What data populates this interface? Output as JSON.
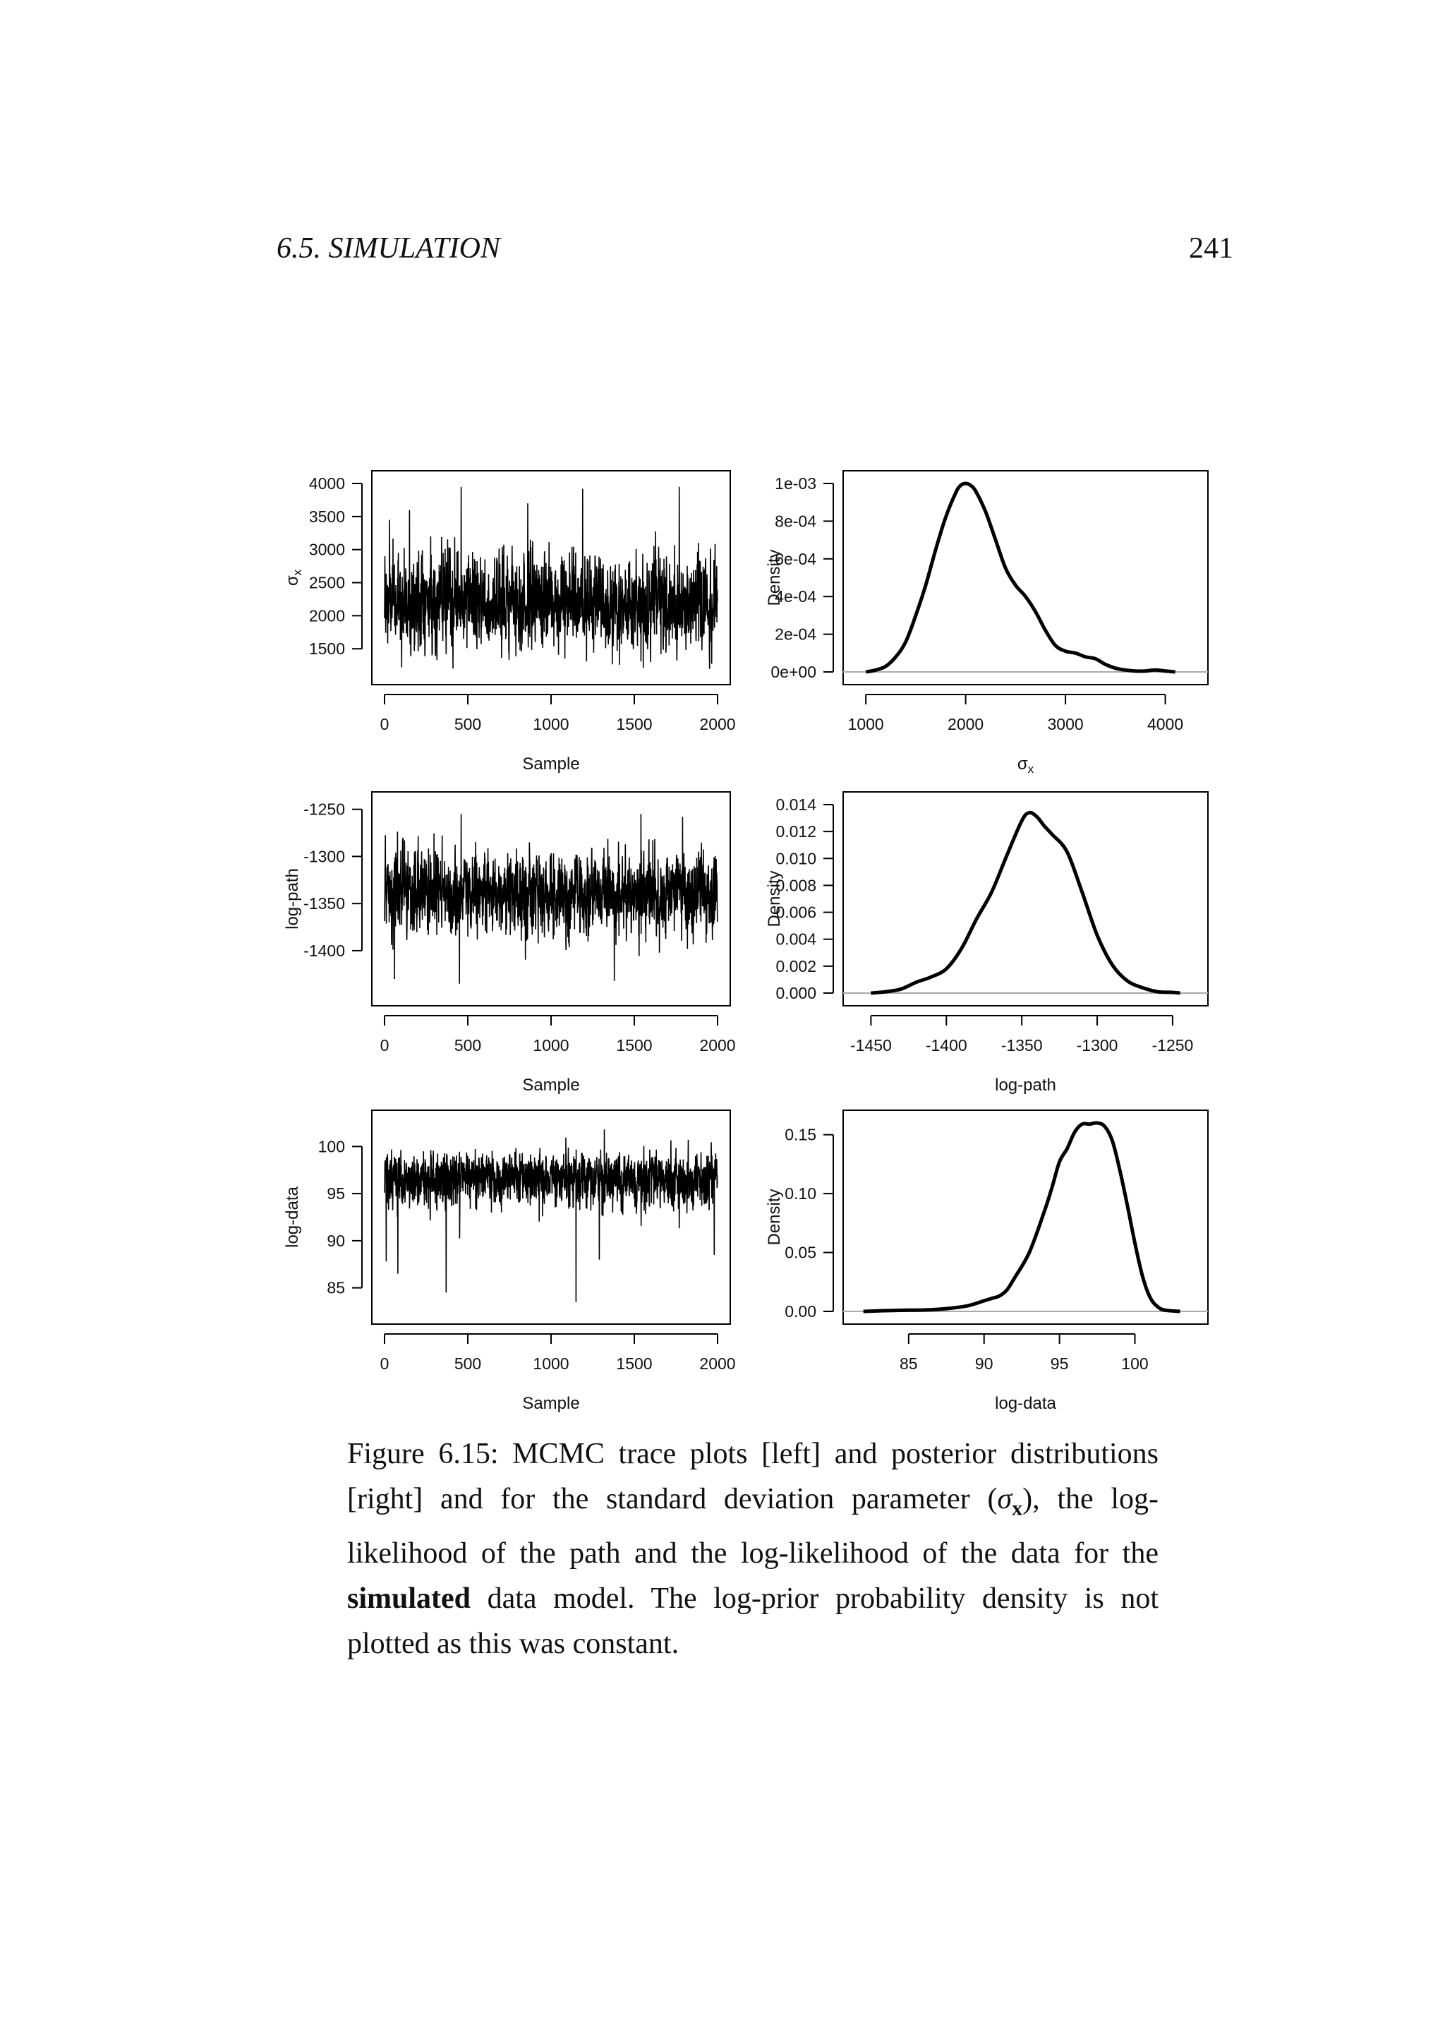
{
  "header": {
    "running_head": "6.5.  SIMULATION",
    "page_number": "241"
  },
  "caption": {
    "prefix": "Figure 6.15: MCMC trace plots [left] and posterior distributions [right] and for the standard deviation parameter (",
    "symbol": "σ",
    "subscript": "x",
    "middle": "), the log-likelihood of the path and the log-likelihood of the data for the ",
    "bold": "simulated",
    "suffix": " data model. The log-prior probability density is not plotted as this was constant."
  },
  "colors": {
    "line": "#000000",
    "baseline": "#aaaaaa"
  },
  "chart_data": [
    {
      "type": "line",
      "panel": "trace-sigma",
      "xlabel": "Sample",
      "ylabel": "σx",
      "xlim": [
        0,
        2000
      ],
      "ylim": [
        1150,
        4000
      ],
      "xticks": [
        0,
        500,
        1000,
        1500,
        2000
      ],
      "xtick_labels": [
        "0",
        "500",
        "1000",
        "1500",
        "2000"
      ],
      "yticks": [
        1500,
        2000,
        2500,
        3000,
        3500,
        4000
      ],
      "ytick_labels": [
        "1500",
        "2000",
        "2500",
        "3000",
        "3500",
        "4000"
      ],
      "series": [
        {
          "n": 2000,
          "mean": 2150,
          "sd": 380,
          "min": 1150,
          "max": 3950,
          "skew": "right",
          "spikes": [
            [
              460,
              3950
            ],
            [
              1190,
              3920
            ],
            [
              1770,
              3950
            ],
            [
              30,
              3450
            ],
            [
              150,
              3600
            ],
            [
              860,
              3700
            ]
          ]
        }
      ]
    },
    {
      "type": "line",
      "panel": "density-sigma",
      "xlabel": "σx",
      "ylabel": "Density",
      "xlim": [
        900,
        4300
      ],
      "ylim": [
        0,
        0.001
      ],
      "xticks": [
        1000,
        2000,
        3000,
        4000
      ],
      "xtick_labels": [
        "1000",
        "2000",
        "3000",
        "4000"
      ],
      "yticks": [
        0,
        0.0002,
        0.0004,
        0.0006,
        0.0008,
        0.001
      ],
      "ytick_labels": [
        "0e+00",
        "2e-04",
        "4e-04",
        "6e-04",
        "8e-04",
        "1e-03"
      ],
      "x": [
        1000,
        1100,
        1200,
        1300,
        1400,
        1500,
        1600,
        1700,
        1800,
        1900,
        1950,
        2000,
        2050,
        2100,
        2200,
        2300,
        2400,
        2500,
        2600,
        2700,
        2800,
        2900,
        3000,
        3100,
        3200,
        3300,
        3400,
        3500,
        3600,
        3700,
        3800,
        3900,
        4000,
        4100
      ],
      "y": [
        0,
        1e-05,
        3e-05,
        8e-05,
        0.00016,
        0.0003,
        0.00046,
        0.00065,
        0.00082,
        0.00095,
        0.00099,
        0.001,
        0.00099,
        0.00096,
        0.00085,
        0.0007,
        0.00055,
        0.00046,
        0.0004,
        0.00032,
        0.00022,
        0.00014,
        0.00011,
        0.0001,
        8e-05,
        7e-05,
        4e-05,
        2e-05,
        1e-05,
        5e-06,
        5e-06,
        1e-05,
        5e-06,
        0
      ]
    },
    {
      "type": "line",
      "panel": "trace-logpath",
      "xlabel": "Sample",
      "ylabel": "log-path",
      "xlim": [
        0,
        2000
      ],
      "ylim": [
        -1445,
        -1245
      ],
      "xticks": [
        0,
        500,
        1000,
        1500,
        2000
      ],
      "xtick_labels": [
        "0",
        "500",
        "1000",
        "1500",
        "2000"
      ],
      "yticks": [
        -1400,
        -1350,
        -1300,
        -1250
      ],
      "ytick_labels": [
        "-1400",
        "-1350",
        "-1300",
        "-1250"
      ],
      "series": [
        {
          "n": 2000,
          "mean": -1340,
          "sd": 28,
          "min": -1435,
          "max": -1255,
          "skew": "none",
          "spikes": [
            [
              460,
              -1255
            ],
            [
              1540,
              -1255
            ],
            [
              1790,
              -1258
            ],
            [
              60,
              -1430
            ],
            [
              450,
              -1435
            ],
            [
              1380,
              -1432
            ]
          ]
        }
      ]
    },
    {
      "type": "line",
      "panel": "density-logpath",
      "xlabel": "log-path",
      "ylabel": "Density",
      "xlim": [
        -1460,
        -1235
      ],
      "ylim": [
        0,
        0.014
      ],
      "xticks": [
        -1450,
        -1400,
        -1350,
        -1300,
        -1250
      ],
      "xtick_labels": [
        "-1450",
        "-1400",
        "-1350",
        "-1300",
        "-1250"
      ],
      "yticks": [
        0,
        0.002,
        0.004,
        0.006,
        0.008,
        0.01,
        0.012,
        0.014
      ],
      "ytick_labels": [
        "0.000",
        "0.002",
        "0.004",
        "0.006",
        "0.008",
        "0.010",
        "0.012",
        "0.014"
      ],
      "x": [
        -1450,
        -1440,
        -1430,
        -1420,
        -1410,
        -1400,
        -1390,
        -1380,
        -1370,
        -1360,
        -1350,
        -1345,
        -1340,
        -1335,
        -1330,
        -1320,
        -1310,
        -1300,
        -1290,
        -1280,
        -1270,
        -1260,
        -1250,
        -1245
      ],
      "y": [
        0,
        0.0001,
        0.0003,
        0.0008,
        0.0012,
        0.0018,
        0.0033,
        0.0055,
        0.0075,
        0.0102,
        0.0128,
        0.0134,
        0.0131,
        0.0124,
        0.0118,
        0.0105,
        0.0075,
        0.0043,
        0.0021,
        0.0009,
        0.0004,
        0.0001,
        5e-05,
        0
      ]
    },
    {
      "type": "line",
      "panel": "trace-logdata",
      "xlabel": "Sample",
      "ylabel": "log-data",
      "xlim": [
        0,
        2000
      ],
      "ylim": [
        82.5,
        102.5
      ],
      "xticks": [
        0,
        500,
        1000,
        1500,
        2000
      ],
      "xtick_labels": [
        "0",
        "500",
        "1000",
        "1500",
        "2000"
      ],
      "yticks": [
        85,
        90,
        95,
        100
      ],
      "ytick_labels": [
        "85",
        "90",
        "95",
        "100"
      ],
      "series": [
        {
          "n": 2000,
          "mean": 96.8,
          "sd": 1.6,
          "min": 83.5,
          "max": 101.8,
          "skew": "left",
          "spikes": [
            [
              370,
              84.5
            ],
            [
              1150,
              83.5
            ],
            [
              10,
              87.8
            ],
            [
              80,
              86.5
            ],
            [
              1290,
              88
            ],
            [
              1980,
              88.5
            ],
            [
              1320,
              101.8
            ]
          ]
        }
      ]
    },
    {
      "type": "line",
      "panel": "density-logdata",
      "xlabel": "log-data",
      "ylabel": "Density",
      "xlim": [
        81.5,
        104
      ],
      "ylim": [
        0,
        0.16
      ],
      "xticks": [
        85,
        90,
        95,
        100
      ],
      "xtick_labels": [
        "85",
        "90",
        "95",
        "100"
      ],
      "yticks": [
        0,
        0.05,
        0.1,
        0.15
      ],
      "ytick_labels": [
        "0.00",
        "0.05",
        "0.10",
        "0.15"
      ],
      "x": [
        82,
        83,
        84,
        85,
        86,
        87,
        88,
        89,
        90,
        90.5,
        91,
        91.5,
        92,
        93,
        94,
        94.5,
        95,
        95.5,
        96,
        96.5,
        97,
        97.5,
        98,
        98.5,
        99,
        99.5,
        100,
        100.5,
        101,
        101.5,
        102,
        103
      ],
      "y": [
        0,
        0.0005,
        0.0008,
        0.001,
        0.0012,
        0.0018,
        0.003,
        0.005,
        0.009,
        0.011,
        0.013,
        0.018,
        0.028,
        0.05,
        0.085,
        0.105,
        0.127,
        0.138,
        0.152,
        0.159,
        0.159,
        0.16,
        0.157,
        0.145,
        0.12,
        0.09,
        0.058,
        0.03,
        0.012,
        0.004,
        0.001,
        0
      ]
    }
  ]
}
